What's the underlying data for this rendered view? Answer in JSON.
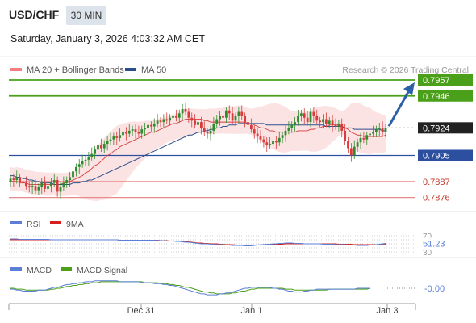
{
  "header": {
    "symbol": "USD/CHF",
    "timeframe": "30 MIN",
    "datetime": "Saturday, January 3, 2026 4:03:32 AM CET"
  },
  "legend": {
    "ma20_label": "MA 20 + Bollinger Bands",
    "ma20_color": "#f08080",
    "ma50_label": "MA 50",
    "ma50_color": "#2b4f8c",
    "copyright": "Research © 2026 Trading Central"
  },
  "colors": {
    "up_candle": "#2e8b2e",
    "down_candle": "#d73b3b",
    "band_fill": "#fcdede",
    "resistance": "#4aa018",
    "support": "#2d4fa0",
    "support_minor": "#e88a8a",
    "current": "#222222",
    "arrow": "#2d5fa6",
    "rsi_line": "#5b7fd6",
    "rsi_ma": "#d62020",
    "macd_line": "#5b7fd6",
    "macd_signal": "#4aa018"
  },
  "chart_data": [
    {
      "type": "candlestick",
      "ylim": [
        0.7868,
        0.7962
      ],
      "x_ticks": [
        "Dec 31",
        "Jan 1",
        "Jan 3"
      ],
      "price_levels": [
        {
          "name": "resistance-2",
          "value": 0.7957,
          "label": "0.7957",
          "kind": "resistance"
        },
        {
          "name": "resistance-1",
          "value": 0.7946,
          "label": "0.7946",
          "kind": "resistance"
        },
        {
          "name": "current-price",
          "value": 0.7924,
          "label": "0.7924",
          "kind": "current"
        },
        {
          "name": "pivot",
          "value": 0.7905,
          "label": "0.7905",
          "kind": "pivot"
        },
        {
          "name": "support-1",
          "value": 0.7887,
          "label": "0.7887",
          "kind": "support"
        },
        {
          "name": "support-2",
          "value": 0.7876,
          "label": "0.7876",
          "kind": "support"
        }
      ],
      "close": [
        0.7889,
        0.7888,
        0.789,
        0.7887,
        0.7886,
        0.7884,
        0.7883,
        0.7884,
        0.7881,
        0.7883,
        0.7886,
        0.7882,
        0.7884,
        0.7886,
        0.7888,
        0.788,
        0.7883,
        0.7886,
        0.7888,
        0.789,
        0.7894,
        0.7897,
        0.7899,
        0.7901,
        0.7902,
        0.7904,
        0.7906,
        0.7909,
        0.7912,
        0.791,
        0.7913,
        0.7915,
        0.7916,
        0.7918,
        0.7917,
        0.7919,
        0.7921,
        0.792,
        0.7922,
        0.7923,
        0.7921,
        0.792,
        0.7923,
        0.7924,
        0.7926,
        0.7925,
        0.7927,
        0.7929,
        0.7928,
        0.793,
        0.7929,
        0.7931,
        0.7932,
        0.7931,
        0.7934,
        0.7937,
        0.7935,
        0.7931,
        0.7929,
        0.7926,
        0.7928,
        0.7924,
        0.7921,
        0.792,
        0.7922,
        0.7927,
        0.793,
        0.7932,
        0.7931,
        0.7936,
        0.7934,
        0.7929,
        0.7932,
        0.7935,
        0.7932,
        0.7928,
        0.7926,
        0.7923,
        0.792,
        0.7918,
        0.7916,
        0.7914,
        0.7912,
        0.7913,
        0.7915,
        0.7914,
        0.7917,
        0.7919,
        0.7922,
        0.7924,
        0.7926,
        0.7928,
        0.7932,
        0.7934,
        0.7931,
        0.7928,
        0.7935,
        0.7932,
        0.7929,
        0.7928,
        0.793,
        0.7927,
        0.7929,
        0.7926,
        0.7925,
        0.7927,
        0.7922,
        0.7915,
        0.791,
        0.7905,
        0.7911,
        0.7914,
        0.7917,
        0.7916,
        0.7919,
        0.792,
        0.7921,
        0.7923,
        0.7924,
        0.7921,
        0.7924
      ],
      "ma20": [
        0.7887,
        0.7887,
        0.7887,
        0.7886,
        0.7886,
        0.7886,
        0.7885,
        0.7885,
        0.7885,
        0.7885,
        0.7885,
        0.7885,
        0.7885,
        0.7885,
        0.7885,
        0.7885,
        0.7885,
        0.7886,
        0.7886,
        0.7887,
        0.7888,
        0.7889,
        0.789,
        0.7891,
        0.7893,
        0.7894,
        0.7896,
        0.7898,
        0.7899,
        0.7901,
        0.7903,
        0.7905,
        0.7906,
        0.7908,
        0.7909,
        0.7911,
        0.7912,
        0.7913,
        0.7914,
        0.7915,
        0.7916,
        0.7917,
        0.7918,
        0.7919,
        0.792,
        0.7921,
        0.7921,
        0.7922,
        0.7923,
        0.7924,
        0.7925,
        0.7926,
        0.7927,
        0.7927,
        0.7928,
        0.7929,
        0.793,
        0.793,
        0.793,
        0.793,
        0.793,
        0.793,
        0.7929,
        0.7929,
        0.7928,
        0.7928,
        0.7928,
        0.7928,
        0.7928,
        0.7928,
        0.7928,
        0.7928,
        0.7928,
        0.7928,
        0.7928,
        0.7928,
        0.7927,
        0.7927,
        0.7926,
        0.7925,
        0.7924,
        0.7924,
        0.7923,
        0.7922,
        0.7922,
        0.7921,
        0.7921,
        0.7921,
        0.7921,
        0.7921,
        0.7921,
        0.7921,
        0.7922,
        0.7922,
        0.7922,
        0.7922,
        0.7923,
        0.7923,
        0.7924,
        0.7924,
        0.7925,
        0.7925,
        0.7926,
        0.7926,
        0.7926,
        0.7926,
        0.7925,
        0.7924,
        0.7923,
        0.7921,
        0.792,
        0.7919,
        0.7919,
        0.7918,
        0.7918,
        0.7918,
        0.7918,
        0.7918,
        0.7918,
        0.7918,
        0.7919
      ],
      "ma50": [
        0.7891,
        0.7891,
        0.789,
        0.789,
        0.7889,
        0.7889,
        0.7888,
        0.7888,
        0.7887,
        0.7887,
        0.7886,
        0.7886,
        0.7886,
        0.7886,
        0.7885,
        0.7885,
        0.7885,
        0.7885,
        0.7885,
        0.7885,
        0.7886,
        0.7886,
        0.7886,
        0.7887,
        0.7887,
        0.7888,
        0.7888,
        0.7889,
        0.789,
        0.7891,
        0.7892,
        0.7893,
        0.7894,
        0.7895,
        0.7896,
        0.7897,
        0.7898,
        0.7899,
        0.79,
        0.7901,
        0.7902,
        0.7903,
        0.7904,
        0.7905,
        0.7906,
        0.7907,
        0.7908,
        0.7909,
        0.791,
        0.7911,
        0.7912,
        0.7913,
        0.7914,
        0.7915,
        0.7916,
        0.7917,
        0.7918,
        0.7919,
        0.7919,
        0.792,
        0.7921,
        0.7921,
        0.7922,
        0.7922,
        0.7923,
        0.7923,
        0.7924,
        0.7924,
        0.7925,
        0.7925,
        0.7926,
        0.7926,
        0.7926,
        0.7927,
        0.7927,
        0.7927,
        0.7927,
        0.7927,
        0.7927,
        0.7927,
        0.7927,
        0.7927,
        0.7926,
        0.7926,
        0.7926,
        0.7926,
        0.7926,
        0.7926,
        0.7926,
        0.7926,
        0.7926,
        0.7926,
        0.7926,
        0.7926,
        0.7926,
        0.7926,
        0.7926,
        0.7926,
        0.7926,
        0.7926,
        0.7926,
        0.7925,
        0.7925,
        0.7925,
        0.7925,
        0.7925,
        0.7925,
        0.7924,
        0.7924,
        0.7924,
        0.7923,
        0.7923,
        0.7923,
        0.7923,
        0.7923,
        0.7923,
        0.7923,
        0.7923,
        0.7923,
        0.7922,
        0.7922
      ],
      "forecast_target": 0.7957
    },
    {
      "type": "line",
      "indicator": "RSI",
      "legend": [
        "RSI",
        "9MA"
      ],
      "levels": [
        "70",
        "30"
      ],
      "last_value": "51.23",
      "ylim": [
        0,
        100
      ],
      "rsi": [
        62,
        62,
        62,
        61,
        61,
        61,
        61,
        61,
        61,
        61,
        61,
        61,
        61,
        60,
        60,
        60,
        60,
        60,
        60,
        60,
        60,
        60,
        60,
        60,
        60,
        60,
        60,
        60,
        60,
        60,
        60,
        60,
        60,
        60,
        60,
        59,
        59,
        59,
        59,
        59,
        59,
        59,
        59,
        59,
        59,
        59,
        59,
        58,
        58,
        58,
        57,
        57,
        57,
        56,
        56,
        55,
        54,
        54,
        53,
        52,
        51,
        50,
        50,
        50,
        49,
        49,
        48,
        48,
        48,
        47,
        47,
        46,
        46,
        46,
        46,
        45,
        45,
        45,
        46,
        47,
        48,
        48,
        49,
        49,
        50,
        50,
        51,
        51,
        52,
        52,
        52,
        51,
        51,
        51,
        50,
        50,
        50,
        50,
        50,
        50,
        49,
        49,
        49,
        49,
        48,
        48,
        48,
        48,
        47,
        47,
        47,
        46,
        46,
        46,
        46,
        47,
        47,
        48,
        49,
        50,
        51
      ],
      "ma9": [
        60,
        60,
        60,
        60,
        60,
        60,
        60,
        60,
        60,
        60,
        60,
        60,
        60,
        60,
        60,
        60,
        60,
        60,
        60,
        60,
        60,
        60,
        60,
        60,
        60,
        60,
        60,
        60,
        60,
        60,
        60,
        60,
        60,
        60,
        60,
        59,
        59,
        59,
        59,
        59,
        59,
        59,
        59,
        59,
        59,
        59,
        59,
        59,
        58,
        58,
        58,
        57,
        57,
        57,
        56,
        56,
        55,
        55,
        54,
        53,
        52,
        52,
        51,
        51,
        50,
        50,
        50,
        49,
        49,
        48,
        48,
        48,
        47,
        47,
        47,
        47,
        47,
        47,
        47,
        47,
        47,
        47,
        48,
        48,
        48,
        49,
        49,
        49,
        50,
        50,
        50,
        50,
        50,
        50,
        50,
        50,
        50,
        50,
        50,
        50,
        50,
        50,
        50,
        50,
        50,
        49,
        49,
        49,
        49,
        49,
        48,
        48,
        48,
        48,
        48,
        48,
        48,
        48,
        48,
        48,
        49
      ]
    },
    {
      "type": "line",
      "indicator": "MACD",
      "legend": [
        "MACD",
        "MACD Signal"
      ],
      "last_value": "-0.00",
      "ylim": [
        -0.0013,
        0.0013
      ],
      "macd": [
        -0.0001,
        -0.0001,
        -0.0002,
        -0.0002,
        -0.0003,
        -0.0003,
        -0.0003,
        -0.0003,
        -0.0003,
        -0.0002,
        -0.0002,
        -0.0002,
        -0.0001,
        0.0,
        0.0001,
        0.0001,
        0.0002,
        0.0003,
        0.0004,
        0.0004,
        0.0005,
        0.0005,
        0.0006,
        0.0006,
        0.0007,
        0.0007,
        0.0007,
        0.0008,
        0.0008,
        0.0008,
        0.0008,
        0.0008,
        0.0008,
        0.0008,
        0.0008,
        0.0007,
        0.0007,
        0.0007,
        0.0007,
        0.0007,
        0.0007,
        0.0007,
        0.0006,
        0.0006,
        0.0006,
        0.0006,
        0.0005,
        0.0005,
        0.0005,
        0.0004,
        0.0004,
        0.0003,
        0.0003,
        0.0002,
        0.0001,
        0.0,
        -0.0001,
        -0.0002,
        -0.0003,
        -0.0004,
        -0.0005,
        -0.0006,
        -0.0006,
        -0.0007,
        -0.0007,
        -0.0007,
        -0.0007,
        -0.0006,
        -0.0006,
        -0.0005,
        -0.0005,
        -0.0004,
        -0.0003,
        -0.0002,
        -0.0001,
        0.0,
        0.0,
        0.0001,
        0.0001,
        0.0001,
        0.0001,
        0.0001,
        0.0001,
        0.0001,
        0.0,
        0.0,
        -0.0001,
        -0.0001,
        -0.0002,
        -0.0003,
        -0.0003,
        -0.0004,
        -0.0004,
        -0.0004,
        -0.0003,
        -0.0003,
        -0.0002,
        -0.0002,
        -0.0001,
        -0.0001,
        -0.0001,
        -0.0001,
        -0.0001,
        -0.0001,
        -0.0001,
        -0.0001,
        -0.0001,
        -0.0001,
        -0.0001,
        -0.0001,
        -0.0001,
        0.0,
        0.0,
        0.0,
        0.0,
        0.0
      ],
      "signal": [
        0.0,
        0.0,
        -0.0001,
        -0.0001,
        -0.0001,
        -0.0002,
        -0.0002,
        -0.0002,
        -0.0002,
        -0.0002,
        -0.0002,
        -0.0002,
        -0.0002,
        -0.0001,
        -0.0001,
        0.0,
        0.0,
        0.0001,
        0.0002,
        0.0002,
        0.0003,
        0.0003,
        0.0004,
        0.0004,
        0.0005,
        0.0005,
        0.0006,
        0.0006,
        0.0006,
        0.0007,
        0.0007,
        0.0007,
        0.0007,
        0.0007,
        0.0007,
        0.0007,
        0.0007,
        0.0007,
        0.0007,
        0.0007,
        0.0007,
        0.0007,
        0.0007,
        0.0006,
        0.0006,
        0.0006,
        0.0006,
        0.0006,
        0.0005,
        0.0005,
        0.0005,
        0.0004,
        0.0004,
        0.0003,
        0.0003,
        0.0002,
        0.0001,
        0.0001,
        0.0,
        -0.0001,
        -0.0002,
        -0.0003,
        -0.0004,
        -0.0004,
        -0.0005,
        -0.0005,
        -0.0006,
        -0.0006,
        -0.0006,
        -0.0006,
        -0.0006,
        -0.0005,
        -0.0005,
        -0.0004,
        -0.0003,
        -0.0003,
        -0.0002,
        -0.0001,
        -0.0001,
        0.0,
        0.0,
        0.0,
        0.0,
        0.0,
        0.0,
        0.0,
        0.0,
        0.0,
        -0.0001,
        -0.0001,
        -0.0001,
        -0.0002,
        -0.0002,
        -0.0002,
        -0.0002,
        -0.0002,
        -0.0002,
        -0.0002,
        -0.0002,
        -0.0002,
        -0.0002,
        -0.0002,
        -0.0001,
        -0.0001,
        -0.0001,
        -0.0001,
        -0.0001,
        -0.0001,
        -0.0001,
        -0.0001,
        -0.0001,
        -0.0001,
        -0.0001,
        -0.0001,
        -0.0001,
        0.0
      ]
    }
  ]
}
